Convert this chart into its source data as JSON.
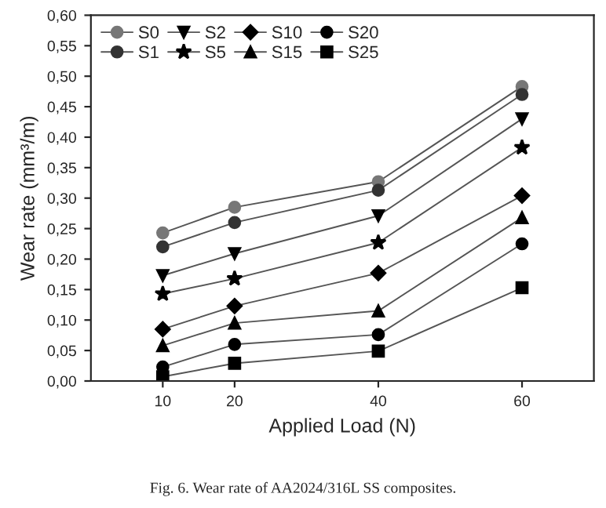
{
  "chart_data": {
    "type": "line",
    "xlabel": "Applied Load (N)",
    "ylabel": "Wear rate (mm³/m)",
    "x": [
      10,
      20,
      40,
      60
    ],
    "xlim": [
      0,
      70
    ],
    "xticks": [
      10,
      20,
      40,
      60
    ],
    "ylim": [
      0,
      0.6
    ],
    "yticks": [
      {
        "value": 0,
        "label": "0,00"
      },
      {
        "value": 0.05,
        "label": "0,05"
      },
      {
        "value": 0.1,
        "label": "0,10"
      },
      {
        "value": 0.15,
        "label": "0,15"
      },
      {
        "value": 0.2,
        "label": "0,20"
      },
      {
        "value": 0.25,
        "label": "0,25"
      },
      {
        "value": 0.3,
        "label": "0,30"
      },
      {
        "value": 0.35,
        "label": "0,35"
      },
      {
        "value": 0.4,
        "label": "0,40"
      },
      {
        "value": 0.45,
        "label": "0,45"
      },
      {
        "value": 0.5,
        "label": "0,50"
      },
      {
        "value": 0.55,
        "label": "0,55"
      },
      {
        "value": 0.6,
        "label": "0,60"
      }
    ],
    "grid": false,
    "legend": "top left",
    "line_style": "solid",
    "series": [
      {
        "name": "S0",
        "color": "#777777",
        "marker": "circle",
        "values": [
          0.243,
          0.285,
          0.327,
          0.483
        ]
      },
      {
        "name": "S1",
        "color": "#333333",
        "marker": "circle",
        "values": [
          0.22,
          0.26,
          0.313,
          0.47
        ]
      },
      {
        "name": "S2",
        "color": "#000000",
        "marker": "triangle_down",
        "values": [
          0.173,
          0.209,
          0.271,
          0.43
        ]
      },
      {
        "name": "S5",
        "color": "#000000",
        "marker": "star",
        "values": [
          0.143,
          0.168,
          0.227,
          0.383
        ]
      },
      {
        "name": "S10",
        "color": "#000000",
        "marker": "diamond",
        "values": [
          0.085,
          0.123,
          0.177,
          0.304
        ]
      },
      {
        "name": "S15",
        "color": "#000000",
        "marker": "triangle",
        "values": [
          0.058,
          0.095,
          0.115,
          0.268
        ]
      },
      {
        "name": "S20",
        "color": "#000000",
        "marker": "circle",
        "values": [
          0.023,
          0.06,
          0.076,
          0.225
        ]
      },
      {
        "name": "S25",
        "color": "#000000",
        "marker": "square",
        "values": [
          0.007,
          0.029,
          0.049,
          0.153
        ]
      }
    ],
    "annotations": [
      "Fig. 6. Wear rate of AA2024/316L SS composites."
    ]
  }
}
